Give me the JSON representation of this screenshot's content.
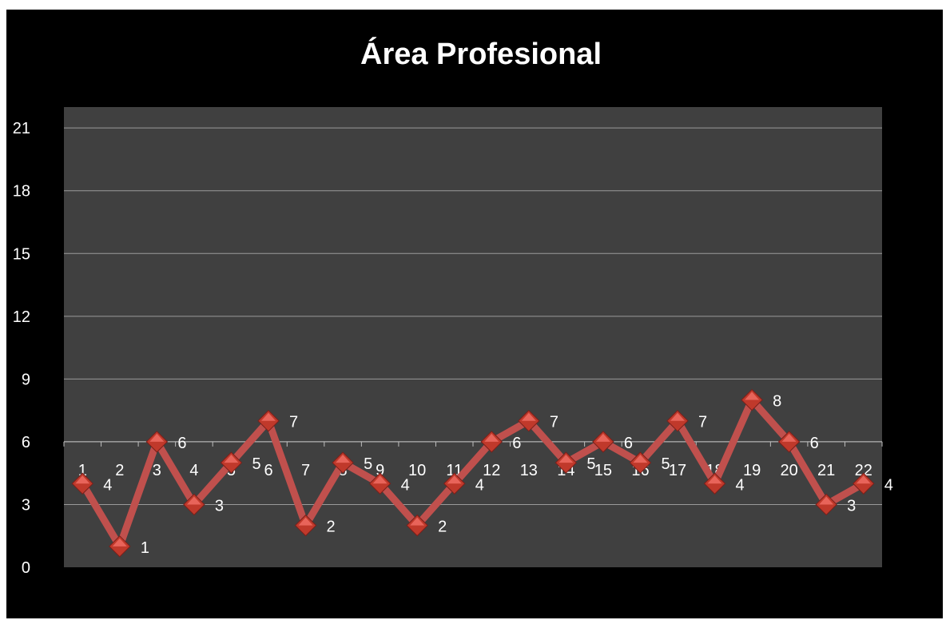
{
  "chart_data": {
    "type": "line",
    "title": "Área Profesional",
    "categories": [
      "1",
      "2",
      "3",
      "4",
      "5",
      "6",
      "7",
      "8",
      "9",
      "10",
      "11",
      "12",
      "13",
      "14",
      "15",
      "16",
      "17",
      "18",
      "19",
      "20",
      "21",
      "22"
    ],
    "series": [
      {
        "values": [
          4,
          1,
          6,
          3,
          5,
          7,
          2,
          5,
          4,
          2,
          4,
          6,
          7,
          5,
          6,
          5,
          7,
          4,
          8,
          6,
          3,
          4
        ]
      }
    ],
    "yticks": [
      "0",
      "3",
      "6",
      "9",
      "12",
      "15",
      "18",
      "21"
    ],
    "ylim": [
      0,
      22
    ],
    "grid": true,
    "line_color": "#c0504d",
    "plot_bg": "#404040"
  }
}
